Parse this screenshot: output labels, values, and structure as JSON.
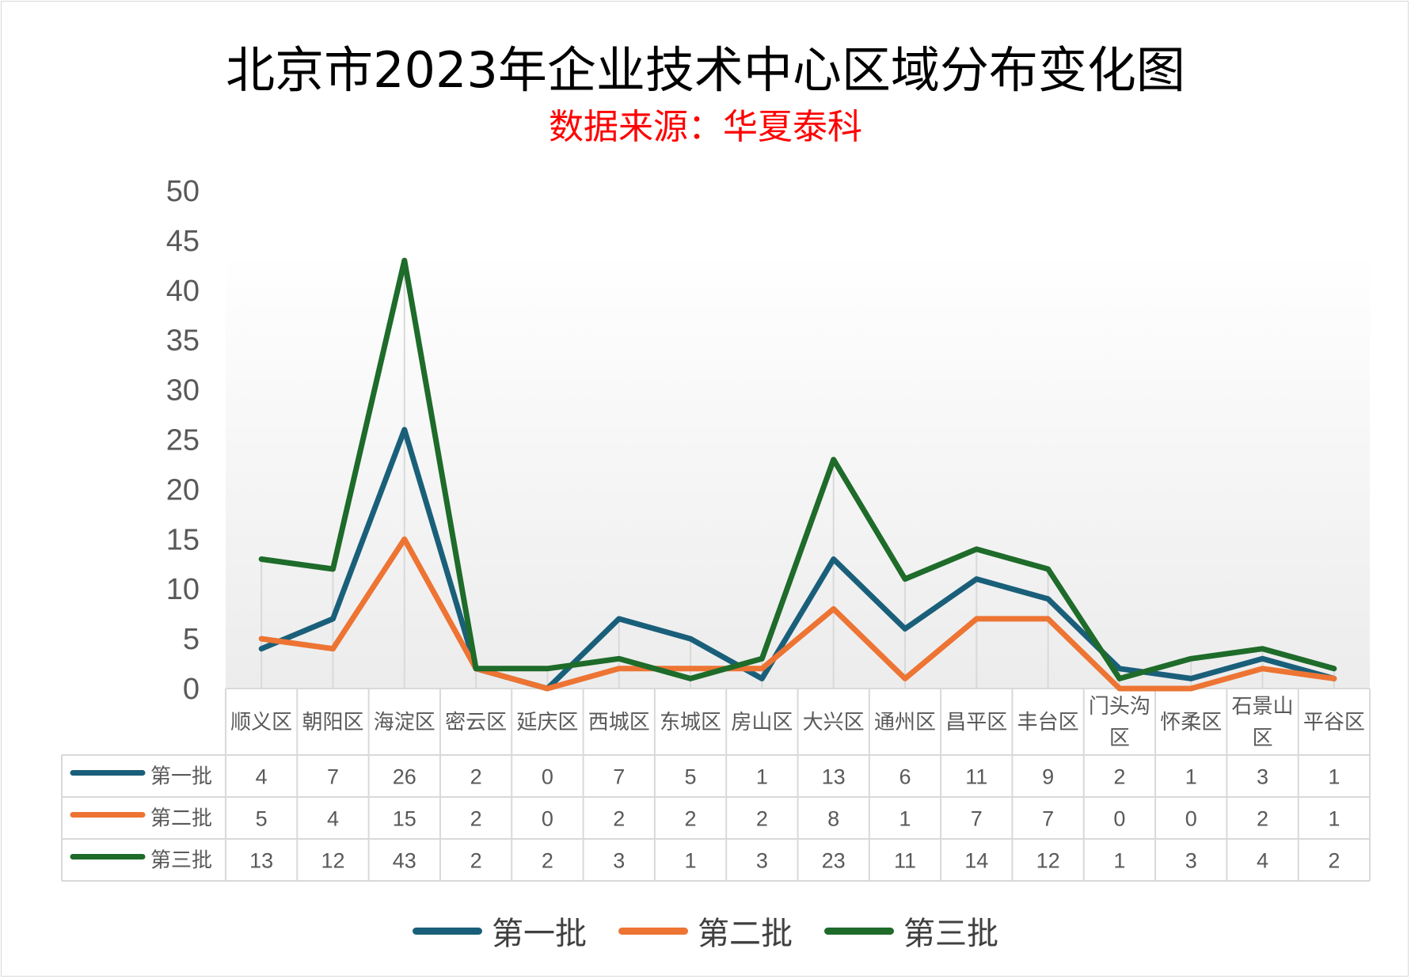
{
  "chart_data": {
    "type": "line",
    "title": "北京市2023年企业技术中心区域分布变化图",
    "subtitle": "数据来源：华夏泰科",
    "categories": [
      [
        "顺义区"
      ],
      [
        "朝阳区"
      ],
      [
        "海淀区"
      ],
      [
        "密云区"
      ],
      [
        "延庆区"
      ],
      [
        "西城区"
      ],
      [
        "东城区"
      ],
      [
        "房山区"
      ],
      [
        "大兴区"
      ],
      [
        "通州区"
      ],
      [
        "昌平区"
      ],
      [
        "丰台区"
      ],
      [
        "门头沟",
        "区"
      ],
      [
        "怀柔区"
      ],
      [
        "石景山",
        "区"
      ],
      [
        "平谷区"
      ]
    ],
    "series": [
      {
        "name": "第一批",
        "color": "#1a5f7a",
        "values": [
          4,
          7,
          26,
          2,
          0,
          7,
          5,
          1,
          13,
          6,
          11,
          9,
          2,
          1,
          3,
          1
        ]
      },
      {
        "name": "第二批",
        "color": "#ed7433",
        "values": [
          5,
          4,
          15,
          2,
          0,
          2,
          2,
          2,
          8,
          1,
          7,
          7,
          0,
          0,
          2,
          1
        ]
      },
      {
        "name": "第三批",
        "color": "#1e6b2a",
        "values": [
          13,
          12,
          43,
          2,
          2,
          3,
          1,
          3,
          23,
          11,
          14,
          12,
          1,
          3,
          4,
          2
        ]
      }
    ],
    "ylim": [
      0,
      50
    ],
    "yticks": [
      0,
      5,
      10,
      15,
      20,
      25,
      30,
      35,
      40,
      45,
      50
    ],
    "data_table": true,
    "legend_position": "bottom",
    "grid": "vertical drop lines"
  }
}
